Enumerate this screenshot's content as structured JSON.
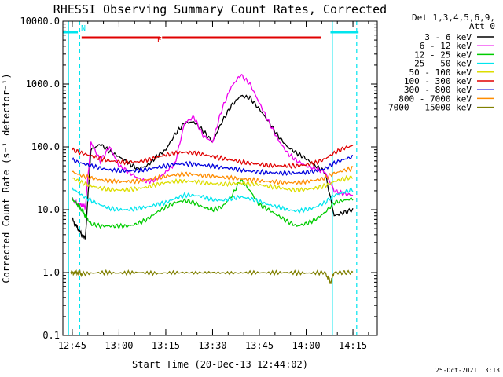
{
  "chart_data": {
    "type": "line",
    "title": "RHESSI Observing Summary Count Rates, Corrected",
    "xlabel": "Start Time (20-Dec-13 12:44:02)",
    "ylabel": "Corrected Count Rate (s⁻¹ detector⁻¹)",
    "y_scale": "log",
    "ylim": [
      0.1,
      10000
    ],
    "y_ticks": [
      "0.1",
      "1.0",
      "10.0",
      "100.0",
      "1000.0",
      "10000.0"
    ],
    "y_tick_values": [
      0.1,
      1,
      10,
      100,
      1000,
      10000
    ],
    "xlim_minutes": [
      12.7,
      14.38
    ],
    "x_tick_labels": [
      "12:45",
      "13:00",
      "13:15",
      "13:30",
      "13:45",
      "14:00",
      "14:15"
    ],
    "x_tick_hours": [
      12.75,
      13.0,
      13.25,
      13.5,
      13.75,
      14.0,
      14.25
    ],
    "legend_header": [
      "Det 1,3,4,5,6,9,",
      "Att 0"
    ],
    "legend_placement": "right",
    "timestamp": "25-Oct-2021 13:13",
    "flags": [
      {
        "label": "N",
        "color": "#00e5ee",
        "segments": [
          [
            12.7,
            12.78
          ],
          [
            14.13,
            14.28
          ]
        ]
      },
      {
        "label": "F",
        "color": "#e00000",
        "segments": [
          [
            12.8,
            13.22
          ],
          [
            13.23,
            14.08
          ]
        ]
      }
    ],
    "night_boundaries": [
      12.73,
      12.79,
      14.14,
      14.27
    ],
    "series": [
      {
        "name": "3 - 6 keV",
        "color": "#000000",
        "x": [
          12.75,
          12.78,
          12.8,
          12.82,
          12.85,
          12.9,
          12.95,
          13.0,
          13.05,
          13.1,
          13.15,
          13.2,
          13.25,
          13.3,
          13.35,
          13.4,
          13.45,
          13.5,
          13.55,
          13.6,
          13.65,
          13.7,
          13.75,
          13.8,
          13.85,
          13.9,
          13.95,
          14.0,
          14.05,
          14.1,
          14.15,
          14.2,
          14.25
        ],
        "y": [
          7,
          5,
          4,
          3.5,
          90,
          110,
          85,
          70,
          55,
          45,
          50,
          70,
          90,
          160,
          240,
          250,
          180,
          120,
          250,
          450,
          650,
          600,
          400,
          250,
          150,
          100,
          80,
          65,
          50,
          40,
          8,
          9,
          10
        ]
      },
      {
        "name": "6 - 12 keV",
        "color": "#ee00ee",
        "x": [
          12.75,
          12.78,
          12.8,
          12.82,
          12.85,
          12.9,
          12.95,
          13.0,
          13.05,
          13.1,
          13.15,
          13.2,
          13.25,
          13.3,
          13.35,
          13.4,
          13.45,
          13.5,
          13.55,
          13.6,
          13.65,
          13.7,
          13.75,
          13.8,
          13.85,
          13.9,
          13.95,
          14.0,
          14.05,
          14.1,
          14.15,
          14.2,
          14.25
        ],
        "y": [
          15,
          12,
          12,
          11,
          120,
          60,
          100,
          50,
          40,
          32,
          28,
          30,
          40,
          55,
          240,
          300,
          150,
          120,
          400,
          900,
          1400,
          1000,
          500,
          250,
          130,
          80,
          60,
          50,
          45,
          40,
          20,
          18,
          17
        ]
      },
      {
        "name": "12 - 25 keV",
        "color": "#00cc00",
        "x": [
          12.75,
          12.78,
          12.8,
          12.82,
          12.85,
          12.9,
          12.95,
          13.0,
          13.05,
          13.1,
          13.15,
          13.2,
          13.25,
          13.3,
          13.35,
          13.4,
          13.45,
          13.5,
          13.55,
          13.6,
          13.65,
          13.7,
          13.75,
          13.8,
          13.85,
          13.9,
          13.95,
          14.0,
          14.05,
          14.1,
          14.15,
          14.2,
          14.25
        ],
        "y": [
          15,
          12,
          10,
          8,
          6,
          5.5,
          5.5,
          5.5,
          5.5,
          6,
          7,
          9,
          11,
          13,
          14,
          13,
          11,
          10,
          11,
          16,
          30,
          20,
          12,
          10,
          8,
          6.5,
          5.5,
          6,
          7,
          9,
          13,
          14,
          15
        ]
      },
      {
        "name": "25 - 50 keV",
        "color": "#00e5ee",
        "x": [
          12.75,
          12.8,
          12.85,
          12.9,
          12.95,
          13.0,
          13.05,
          13.1,
          13.15,
          13.2,
          13.25,
          13.3,
          13.35,
          13.4,
          13.45,
          13.5,
          13.55,
          13.6,
          13.65,
          13.7,
          13.75,
          13.8,
          13.85,
          13.9,
          13.95,
          14.0,
          14.05,
          14.1,
          14.15,
          14.2,
          14.25
        ],
        "y": [
          22,
          17,
          14,
          12,
          10.5,
          10,
          10,
          10.5,
          11,
          12,
          13,
          15,
          17,
          17,
          16,
          14.5,
          14,
          15,
          16,
          15,
          13.5,
          12,
          11,
          10,
          9.5,
          10,
          11,
          13,
          17,
          19,
          21
        ]
      },
      {
        "name": "50 - 100 keV",
        "color": "#dddd00",
        "x": [
          12.75,
          12.8,
          12.85,
          12.9,
          12.95,
          13.0,
          13.05,
          13.1,
          13.15,
          13.2,
          13.25,
          13.3,
          13.35,
          13.4,
          13.45,
          13.5,
          13.55,
          13.6,
          13.65,
          13.7,
          13.75,
          13.8,
          13.85,
          13.9,
          13.95,
          14.0,
          14.05,
          14.1,
          14.15,
          14.2,
          14.25
        ],
        "y": [
          32,
          27,
          24,
          22,
          21,
          20.5,
          21,
          21.5,
          23,
          25,
          27,
          28,
          28.5,
          28,
          27,
          26,
          25.5,
          26,
          26.5,
          26,
          25,
          23.5,
          22.5,
          21,
          20.5,
          21,
          22,
          24,
          28,
          31,
          33
        ]
      },
      {
        "name": "100 - 300 keV",
        "color": "#e00000",
        "x": [
          12.75,
          12.8,
          12.85,
          12.9,
          12.95,
          13.0,
          13.05,
          13.1,
          13.15,
          13.2,
          13.25,
          13.3,
          13.35,
          13.4,
          13.45,
          13.5,
          13.55,
          13.6,
          13.65,
          13.7,
          13.75,
          13.8,
          13.85,
          13.9,
          13.95,
          14.0,
          14.05,
          14.1,
          14.15,
          14.2,
          14.25
        ],
        "y": [
          90,
          80,
          72,
          65,
          60,
          58,
          57,
          58,
          62,
          68,
          75,
          80,
          82,
          80,
          76,
          70,
          66,
          62,
          58,
          55,
          53,
          51,
          50,
          50,
          50,
          52,
          56,
          64,
          80,
          95,
          105
        ]
      },
      {
        "name": "300 - 800 keV",
        "color": "#0000dd",
        "x": [
          12.75,
          12.8,
          12.85,
          12.9,
          12.95,
          13.0,
          13.05,
          13.1,
          13.15,
          13.2,
          13.25,
          13.3,
          13.35,
          13.4,
          13.45,
          13.5,
          13.55,
          13.6,
          13.65,
          13.7,
          13.75,
          13.8,
          13.85,
          13.9,
          13.95,
          14.0,
          14.05,
          14.1,
          14.15,
          14.2,
          14.25
        ],
        "y": [
          62,
          55,
          50,
          46,
          43,
          42,
          41.5,
          42,
          44,
          47,
          50,
          53,
          54,
          53,
          51,
          49,
          47,
          45,
          43,
          41,
          40,
          39,
          38.5,
          38.5,
          38.5,
          39.5,
          41,
          45,
          55,
          63,
          70
        ]
      },
      {
        "name": "800 - 7000 keV",
        "color": "#ff8c00",
        "x": [
          12.75,
          12.8,
          12.85,
          12.9,
          12.95,
          13.0,
          13.05,
          13.1,
          13.15,
          13.2,
          13.25,
          13.3,
          13.35,
          13.4,
          13.45,
          13.5,
          13.55,
          13.6,
          13.65,
          13.7,
          13.75,
          13.8,
          13.85,
          13.9,
          13.95,
          14.0,
          14.05,
          14.1,
          14.15,
          14.2,
          14.25
        ],
        "y": [
          40,
          35,
          32,
          30,
          28.5,
          28,
          28,
          28.5,
          30,
          32,
          34,
          36,
          37,
          36.5,
          35,
          34,
          33,
          32,
          31,
          30,
          29,
          28,
          27.5,
          27,
          27,
          28,
          29.5,
          32,
          38,
          42,
          46
        ]
      },
      {
        "name": "7000 - 15000 keV",
        "color": "#808000",
        "x": [
          12.74,
          12.76,
          12.79,
          12.8,
          12.9,
          13.0,
          13.1,
          13.2,
          13.3,
          13.4,
          13.5,
          13.6,
          13.7,
          13.8,
          13.9,
          14.0,
          14.1,
          14.13,
          14.15,
          14.2,
          14.25
        ],
        "y": [
          1.0,
          1.0,
          1.0,
          0.95,
          1.0,
          0.98,
          1.0,
          0.97,
          1.0,
          0.99,
          1.0,
          0.98,
          1.0,
          0.99,
          1.0,
          0.98,
          1.0,
          0.7,
          1.0,
          1.0,
          1.0
        ]
      }
    ]
  }
}
